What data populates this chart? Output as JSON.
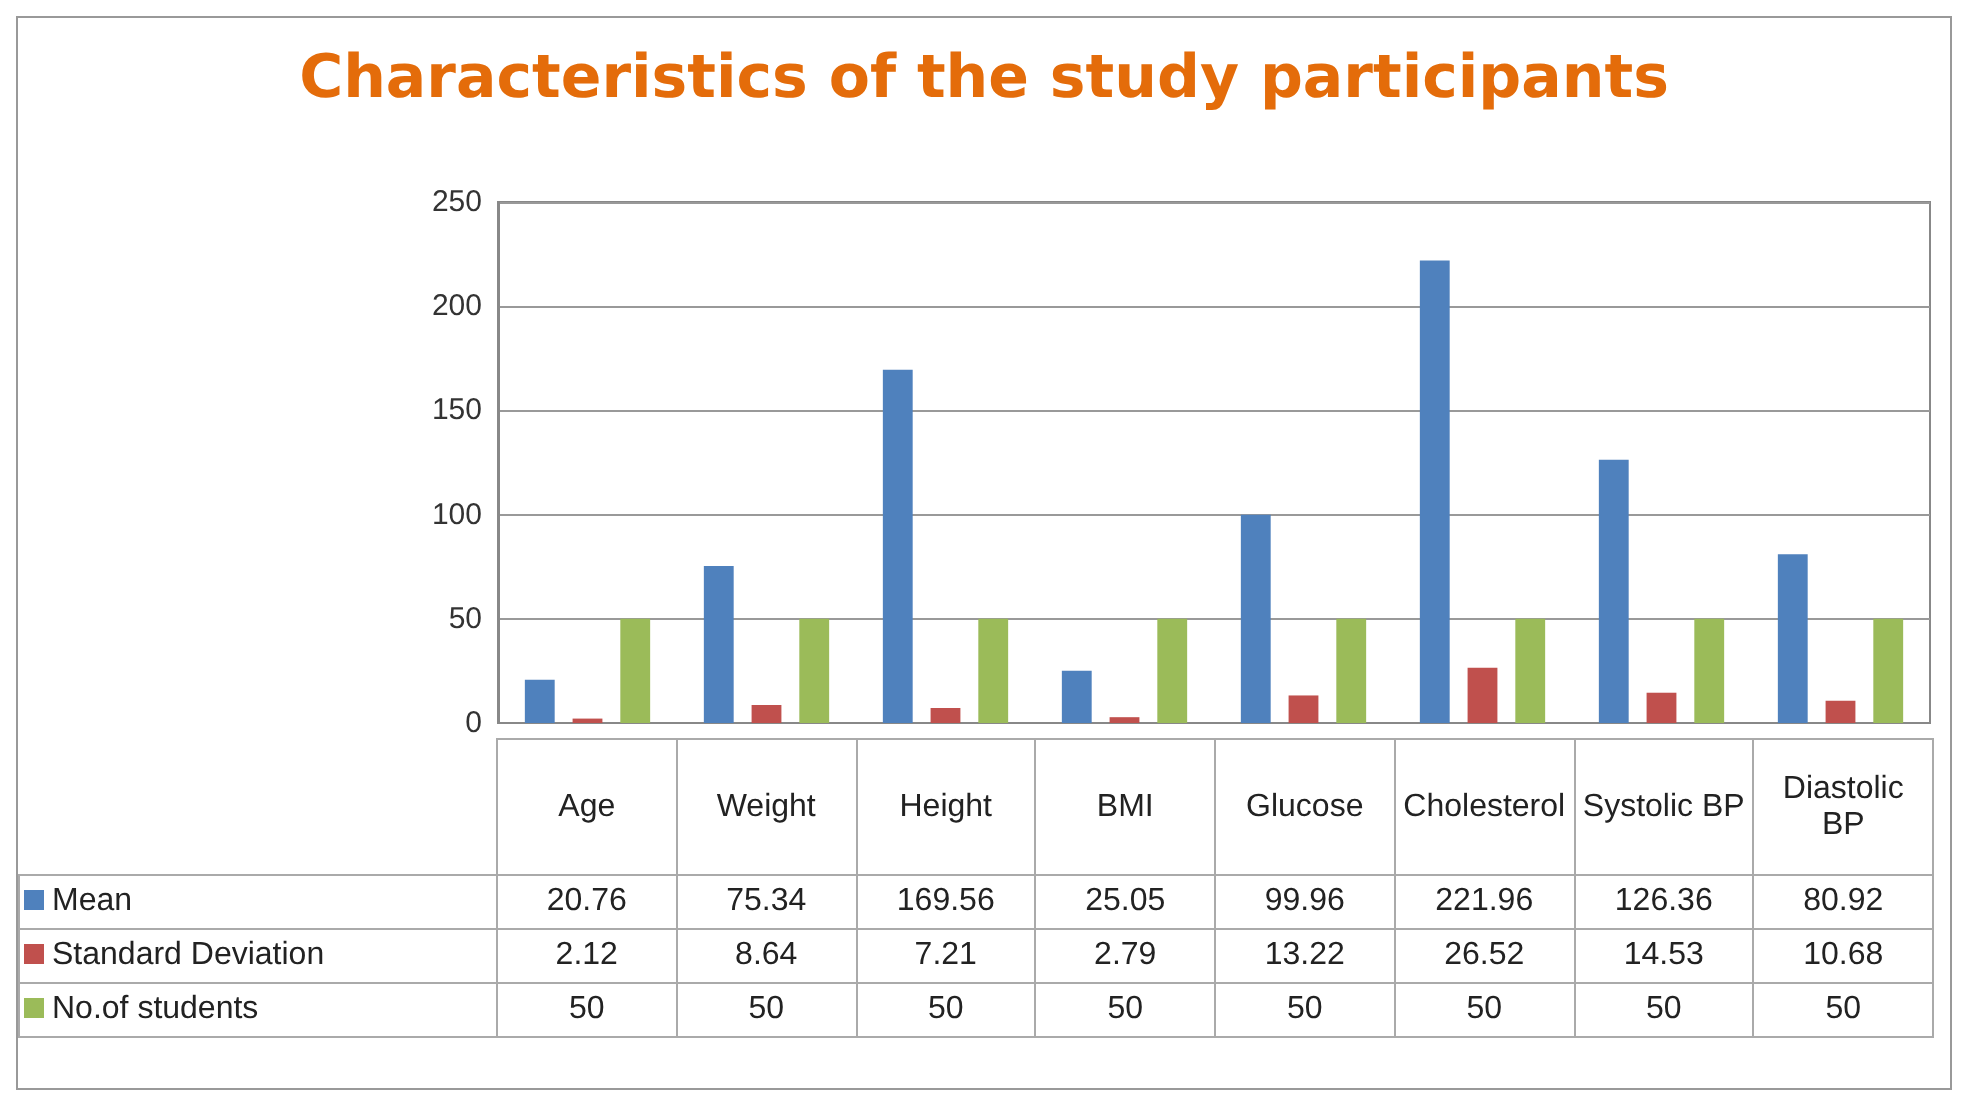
{
  "chart_data": {
    "type": "bar",
    "title": "Characteristics of the study participants",
    "categories": [
      "Age",
      "Weight",
      "Height",
      "BMI",
      "Glucose",
      "Cholesterol",
      "Systolic BP",
      "Diastolic BP"
    ],
    "series": [
      {
        "name": "Mean",
        "color": "#4f81bd",
        "values": [
          20.76,
          75.34,
          169.56,
          25.05,
          99.96,
          221.96,
          126.36,
          80.92
        ]
      },
      {
        "name": "Standard Deviation",
        "color": "#c0504d",
        "values": [
          2.12,
          8.64,
          7.21,
          2.79,
          13.22,
          26.52,
          14.53,
          10.68
        ]
      },
      {
        "name": "No.of students",
        "color": "#9bbb59",
        "values": [
          50,
          50,
          50,
          50,
          50,
          50,
          50,
          50
        ]
      }
    ],
    "ylim": [
      0,
      250
    ],
    "yticks": [
      0,
      50,
      100,
      150,
      200,
      250
    ],
    "grid": "y",
    "legend": "bottom left",
    "data_labels": true
  }
}
